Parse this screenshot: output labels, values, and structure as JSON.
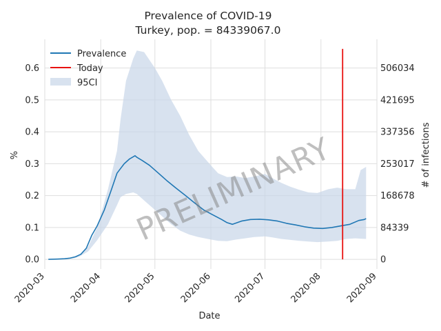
{
  "chart_data": {
    "type": "line",
    "title": "Prevalence of COVID-19",
    "subtitle": "Turkey, pop. = 84339067.0",
    "xlabel": "Date",
    "ylabel": "%",
    "y2label": "# of infections",
    "watermark": "PRELIMINARY",
    "x_ticks": [
      "2020-03",
      "2020-04",
      "2020-05",
      "2020-06",
      "2020-07",
      "2020-08",
      "2020-09"
    ],
    "x_range": [
      "2020-03-01",
      "2020-09-01"
    ],
    "ylim": [
      -0.03,
      0.69
    ],
    "y_ticks": [
      0.0,
      0.1,
      0.2,
      0.3,
      0.4,
      0.5,
      0.6
    ],
    "y_tick_labels": [
      "0.0",
      "0.1",
      "0.2",
      "0.3",
      "0.4",
      "0.5",
      "0.6"
    ],
    "y2_ticks": [
      0,
      84339,
      168678,
      253017,
      337356,
      421695,
      506034
    ],
    "y2_tick_labels": [
      "0",
      "84339",
      "168678",
      "253017",
      "337356",
      "421695",
      "506034"
    ],
    "grid": true,
    "legend_position": "top-left",
    "legend": [
      "Prevalence",
      "Today",
      "95CI"
    ],
    "colors": {
      "prevalence": "#1f77b4",
      "today": "#e8110f",
      "ci": "#c8d6e8"
    },
    "series": [
      {
        "name": "Prevalence",
        "x": [
          "2020-03-03",
          "2020-03-08",
          "2020-03-12",
          "2020-03-15",
          "2020-03-18",
          "2020-03-21",
          "2020-03-24",
          "2020-03-27",
          "2020-03-30",
          "2020-04-03",
          "2020-04-07",
          "2020-04-10",
          "2020-04-12",
          "2020-04-14",
          "2020-04-17",
          "2020-04-20",
          "2020-04-21",
          "2020-04-24",
          "2020-04-28",
          "2020-05-03",
          "2020-05-08",
          "2020-05-13",
          "2020-05-18",
          "2020-05-23",
          "2020-05-28",
          "2020-06-02",
          "2020-06-07",
          "2020-06-10",
          "2020-06-13",
          "2020-06-18",
          "2020-06-23",
          "2020-06-28",
          "2020-07-03",
          "2020-07-08",
          "2020-07-13",
          "2020-07-18",
          "2020-07-23",
          "2020-07-28",
          "2020-08-02",
          "2020-08-07",
          "2020-08-12",
          "2020-08-17",
          "2020-08-22",
          "2020-08-25",
          "2020-08-26"
        ],
        "values": [
          0.0,
          0.001,
          0.002,
          0.004,
          0.008,
          0.016,
          0.035,
          0.075,
          0.105,
          0.155,
          0.22,
          0.27,
          0.285,
          0.3,
          0.315,
          0.325,
          0.32,
          0.31,
          0.295,
          0.27,
          0.245,
          0.222,
          0.2,
          0.177,
          0.155,
          0.14,
          0.125,
          0.115,
          0.11,
          0.12,
          0.125,
          0.126,
          0.124,
          0.12,
          0.113,
          0.108,
          0.102,
          0.098,
          0.097,
          0.1,
          0.105,
          0.11,
          0.122,
          0.125,
          0.128
        ]
      },
      {
        "name": "Today",
        "x": [
          "2020-08-13",
          "2020-08-13"
        ],
        "values": [
          0.0,
          0.66
        ]
      },
      {
        "name": "95CI",
        "x": [
          "2020-03-03",
          "2020-03-15",
          "2020-03-20",
          "2020-03-25",
          "2020-03-30",
          "2020-04-05",
          "2020-04-10",
          "2020-04-12",
          "2020-04-15",
          "2020-04-19",
          "2020-04-21",
          "2020-04-25",
          "2020-05-01",
          "2020-05-05",
          "2020-05-10",
          "2020-05-15",
          "2020-05-20",
          "2020-05-25",
          "2020-06-01",
          "2020-06-05",
          "2020-06-10",
          "2020-06-15",
          "2020-06-20",
          "2020-06-25",
          "2020-07-01",
          "2020-07-05",
          "2020-07-10",
          "2020-07-15",
          "2020-07-20",
          "2020-07-25",
          "2020-07-30",
          "2020-08-05",
          "2020-08-10",
          "2020-08-15",
          "2020-08-20",
          "2020-08-23",
          "2020-08-26"
        ],
        "lower": [
          0.0,
          0.0,
          0.008,
          0.025,
          0.06,
          0.11,
          0.17,
          0.195,
          0.205,
          0.21,
          0.205,
          0.185,
          0.155,
          0.135,
          0.11,
          0.09,
          0.078,
          0.07,
          0.062,
          0.058,
          0.057,
          0.062,
          0.066,
          0.07,
          0.072,
          0.069,
          0.064,
          0.061,
          0.058,
          0.056,
          0.054,
          0.056,
          0.058,
          0.064,
          0.066,
          0.065,
          0.064
        ],
        "upper": [
          0.0,
          0.0,
          0.012,
          0.04,
          0.1,
          0.22,
          0.34,
          0.44,
          0.56,
          0.63,
          0.655,
          0.65,
          0.6,
          0.56,
          0.5,
          0.45,
          0.39,
          0.34,
          0.295,
          0.27,
          0.258,
          0.26,
          0.255,
          0.26,
          0.268,
          0.255,
          0.24,
          0.228,
          0.218,
          0.21,
          0.208,
          0.22,
          0.225,
          0.22,
          0.22,
          0.28,
          0.29
        ]
      }
    ]
  }
}
